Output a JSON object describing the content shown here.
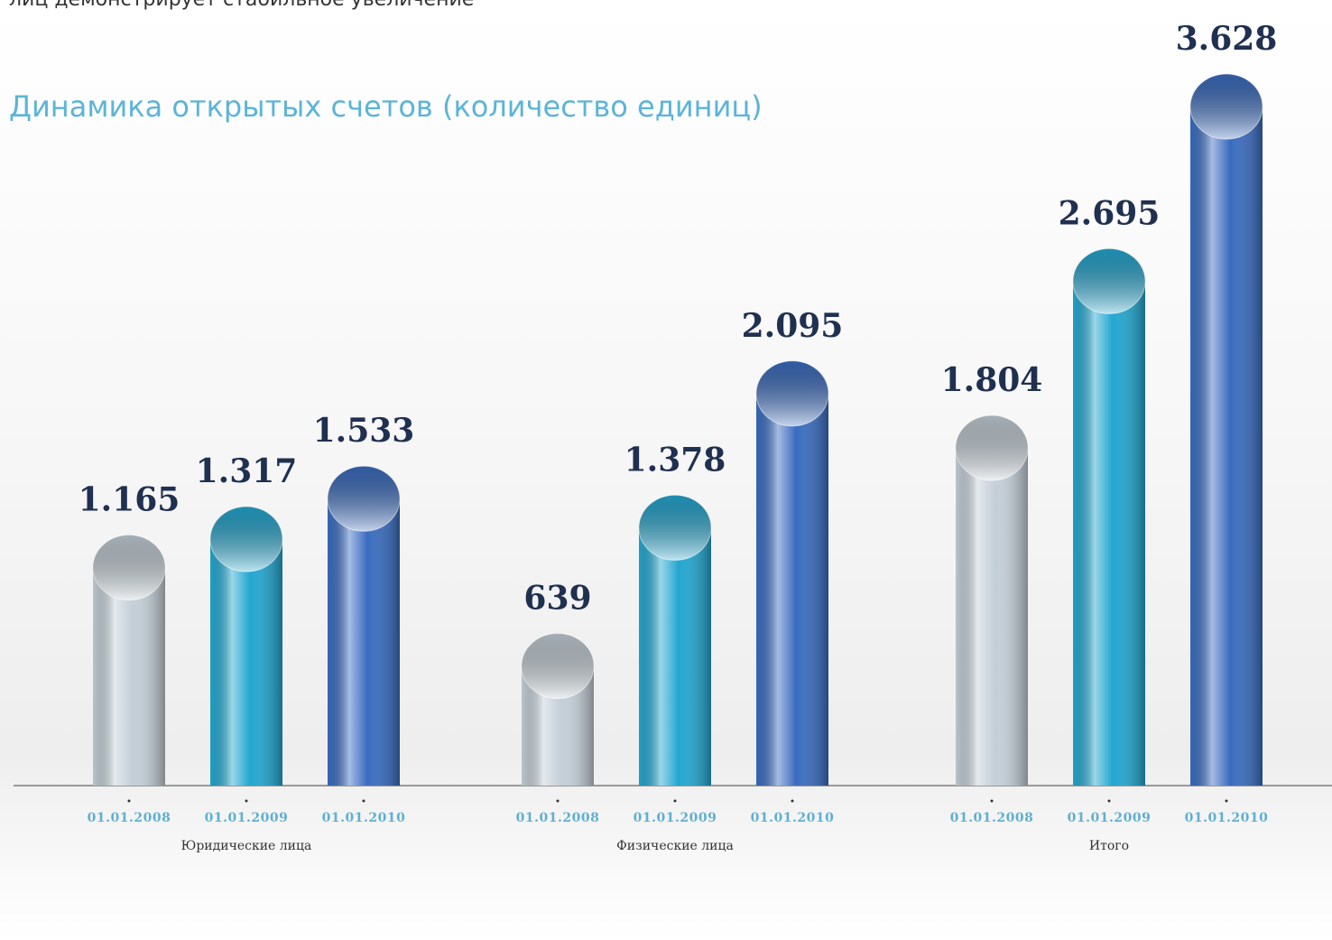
{
  "chart_data": {
    "type": "bar",
    "intro": "лиц демонстрирует стабильное увеличение",
    "title": "Динамика открытых счетов (количество единиц)",
    "categories": [
      "Юридические лица",
      "Физические лица",
      "Итого"
    ],
    "series": [
      {
        "name": "01.01.2008",
        "color": "#c3ced6",
        "values": [
          1165,
          639,
          1804
        ],
        "value_labels": [
          "1.165",
          "639",
          "1.804"
        ]
      },
      {
        "name": "01.01.2009",
        "color": "#23a6cf",
        "values": [
          1317,
          1378,
          2695
        ],
        "value_labels": [
          "1.317",
          "1.378",
          "2.695"
        ]
      },
      {
        "name": "01.01.2010",
        "color": "#3a6cbf",
        "values": [
          1533,
          2095,
          3628
        ],
        "value_labels": [
          "1.533",
          "2.095",
          "3.628"
        ]
      }
    ]
  }
}
